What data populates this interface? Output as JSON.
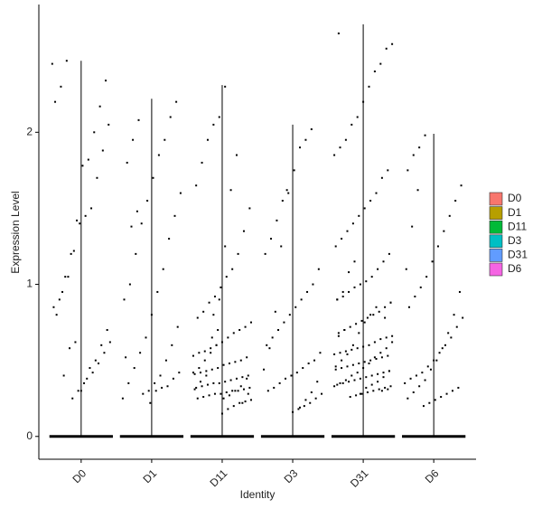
{
  "chart_data": {
    "type": "violin",
    "y_label": "Expression Level",
    "x_label": "Identity",
    "ylim": [
      -0.15,
      2.84
    ],
    "yticks": [
      0,
      1,
      2
    ],
    "legend_position": "right",
    "series": [
      {
        "name": "D0",
        "color": "#F8766D",
        "max": 2.47,
        "points": [
          2.45,
          2.34,
          2.17,
          2.0,
          1.82,
          1.78,
          1.42,
          1.2,
          1.05,
          0.9,
          0.85,
          0.7,
          0.6,
          0.5,
          0.45,
          0.35,
          0.3,
          0.25,
          2.47,
          2.3,
          2.2,
          2.05,
          1.88,
          1.7,
          1.5,
          1.45,
          1.4,
          1.22,
          1.05,
          0.95,
          0.8,
          0.62,
          0.55,
          0.48,
          0.42,
          0.38,
          0.3,
          0.62,
          0.58,
          0.4
        ]
      },
      {
        "name": "D1",
        "color": "#B79F00",
        "max": 2.22,
        "points": [
          2.08,
          1.95,
          1.8,
          1.6,
          1.45,
          1.3,
          1.1,
          0.95,
          0.8,
          0.65,
          0.55,
          0.45,
          0.35,
          0.25,
          2.2,
          2.1,
          1.95,
          1.85,
          1.7,
          1.55,
          1.4,
          1.2,
          1.0,
          0.9,
          0.72,
          0.6,
          0.5,
          0.4,
          0.35,
          0.3,
          0.28,
          1.48,
          1.38,
          0.52,
          0.42,
          0.38,
          0.33,
          0.32,
          0.3,
          0.22
        ]
      },
      {
        "name": "D11",
        "color": "#00BA38",
        "max": 2.31,
        "points": [
          2.3,
          2.1,
          2.05,
          1.95,
          1.8,
          1.65,
          1.5,
          1.35,
          1.2,
          1.1,
          1.05,
          0.98,
          0.92,
          0.88,
          0.82,
          0.78,
          0.75,
          0.72,
          0.7,
          0.68,
          0.65,
          0.62,
          0.6,
          0.58,
          0.56,
          0.55,
          0.53,
          0.52,
          0.5,
          0.49,
          0.48,
          0.47,
          0.45,
          0.44,
          0.43,
          0.42,
          0.41,
          0.4,
          0.39,
          0.38,
          0.37,
          0.36,
          0.35,
          0.35,
          0.34,
          0.33,
          0.32,
          0.32,
          0.31,
          0.3,
          0.3,
          0.29,
          0.28,
          0.28,
          0.27,
          0.26,
          0.25,
          0.24,
          0.23,
          0.22,
          0.2,
          0.18,
          0.15,
          0.6,
          0.55,
          0.5,
          0.45,
          0.42,
          0.38,
          0.33,
          0.3,
          0.27,
          0.25,
          0.7,
          0.65,
          0.4,
          0.36,
          0.31,
          0.28,
          0.22,
          1.85,
          1.62,
          1.25,
          0.9,
          0.8
        ]
      },
      {
        "name": "D3",
        "color": "#00BFC4",
        "max": 2.05,
        "points": [
          2.02,
          1.95,
          1.9,
          1.75,
          1.6,
          1.55,
          1.42,
          1.3,
          1.2,
          1.1,
          1.0,
          0.95,
          0.9,
          0.85,
          0.8,
          0.75,
          0.7,
          0.65,
          0.6,
          0.55,
          0.5,
          0.48,
          0.45,
          0.42,
          0.4,
          0.38,
          0.35,
          0.32,
          0.3,
          0.28,
          0.25,
          0.22,
          0.2,
          0.18,
          0.16,
          1.62,
          1.25,
          0.82,
          0.58,
          0.44,
          0.36,
          0.29,
          0.24,
          0.19
        ]
      },
      {
        "name": "D31",
        "color": "#619CFF",
        "max": 2.71,
        "points": [
          2.65,
          2.58,
          2.55,
          2.45,
          2.4,
          2.3,
          2.2,
          2.1,
          2.05,
          1.95,
          1.9,
          1.85,
          1.75,
          1.7,
          1.6,
          1.55,
          1.5,
          1.45,
          1.4,
          1.35,
          1.3,
          1.25,
          1.2,
          1.15,
          1.1,
          1.05,
          1.02,
          1.0,
          0.98,
          0.95,
          0.92,
          0.9,
          0.88,
          0.85,
          0.82,
          0.8,
          0.78,
          0.76,
          0.74,
          0.72,
          0.7,
          0.68,
          0.66,
          0.65,
          0.64,
          0.62,
          0.6,
          0.59,
          0.58,
          0.57,
          0.56,
          0.55,
          0.54,
          0.53,
          0.52,
          0.51,
          0.5,
          0.49,
          0.48,
          0.47,
          0.46,
          0.45,
          0.44,
          0.43,
          0.42,
          0.41,
          0.4,
          0.39,
          0.38,
          0.37,
          0.36,
          0.35,
          0.34,
          0.33,
          0.32,
          0.31,
          0.3,
          0.29,
          0.28,
          0.27,
          0.26,
          0.7,
          0.66,
          0.62,
          0.58,
          0.55,
          0.52,
          0.48,
          0.45,
          0.42,
          0.4,
          0.37,
          0.35,
          0.33,
          0.31,
          0.3,
          0.85,
          0.8,
          0.75,
          0.68,
          0.6,
          0.54,
          0.5,
          0.46,
          0.43,
          0.39,
          0.36,
          0.34,
          0.32,
          0.28,
          1.15,
          1.08,
          0.95,
          0.9,
          0.88,
          0.78
        ]
      },
      {
        "name": "D6",
        "color": "#F564E3",
        "max": 1.99,
        "points": [
          1.98,
          1.9,
          1.85,
          1.75,
          1.65,
          1.55,
          1.45,
          1.35,
          1.25,
          1.15,
          1.05,
          0.98,
          0.92,
          0.85,
          0.78,
          0.72,
          0.65,
          0.6,
          0.55,
          0.5,
          0.46,
          0.42,
          0.4,
          0.38,
          0.35,
          0.32,
          0.3,
          0.28,
          0.26,
          0.24,
          0.22,
          0.2,
          1.62,
          1.38,
          1.1,
          0.95,
          0.8,
          0.68,
          0.58,
          0.5,
          0.44,
          0.37,
          0.33,
          0.29,
          0.25
        ]
      }
    ]
  }
}
